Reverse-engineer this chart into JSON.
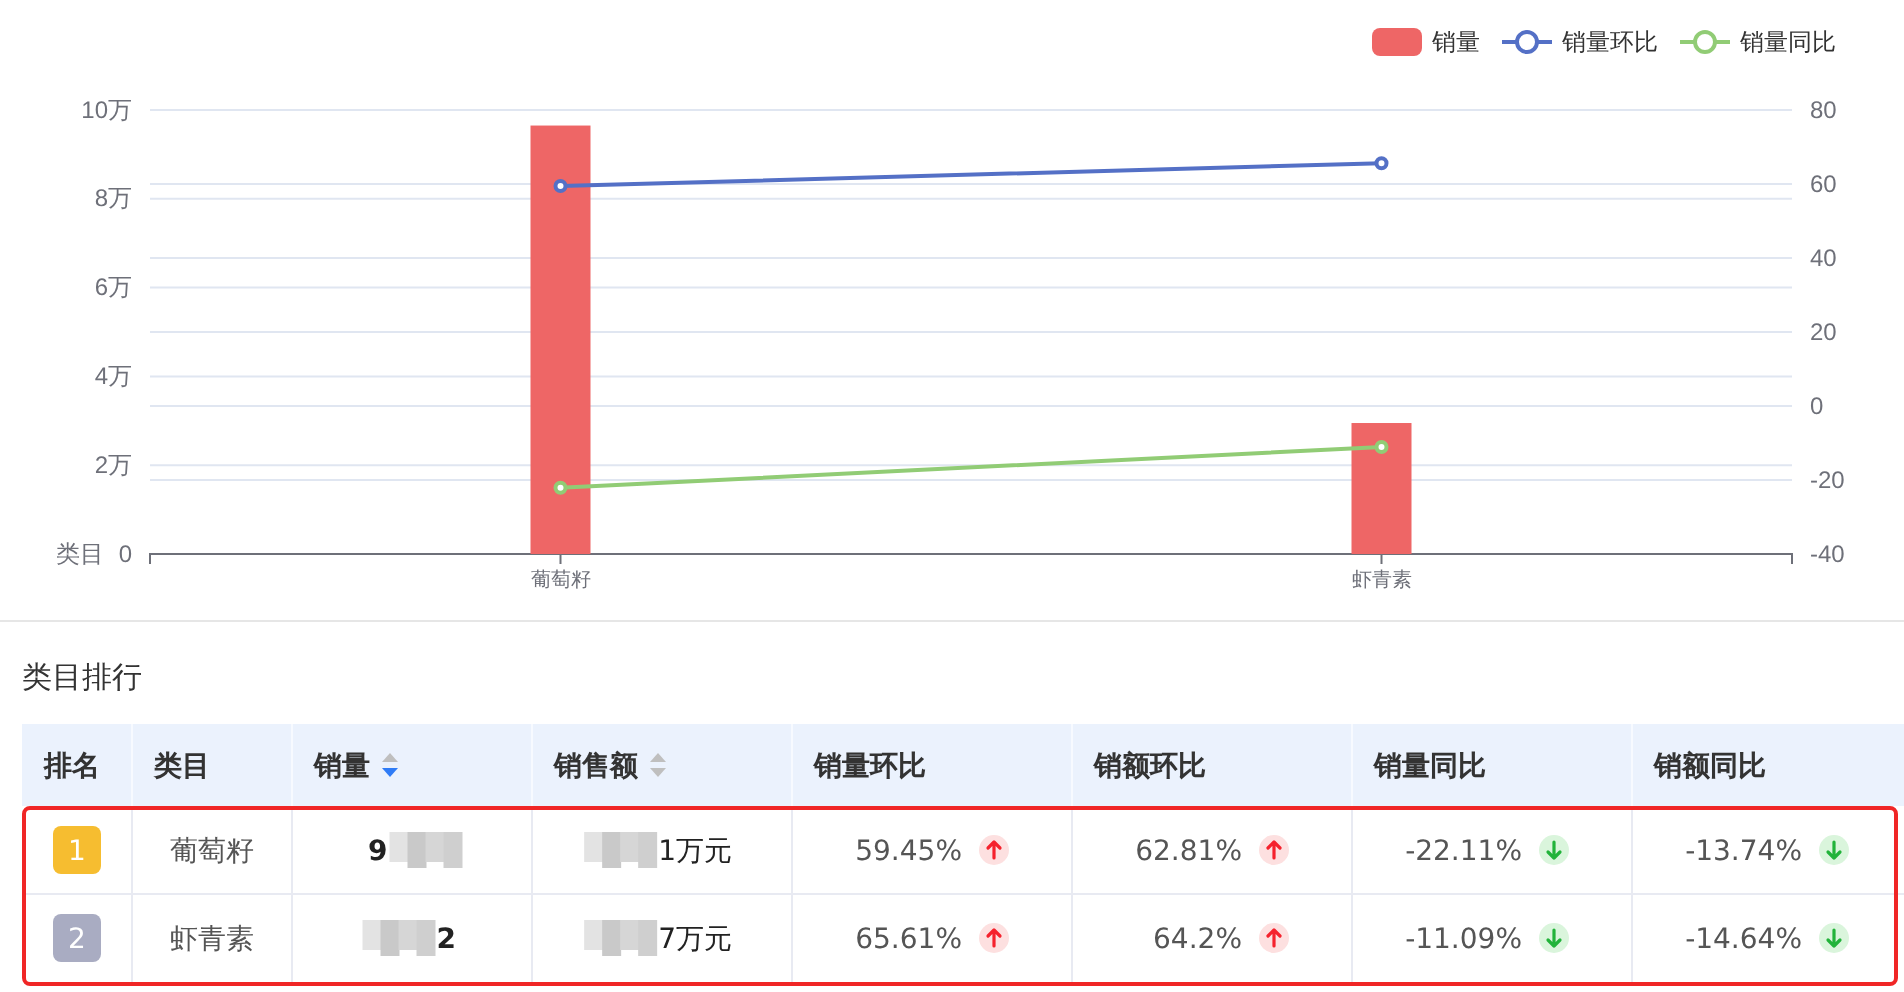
{
  "chart_data": [
    {
      "type": "bar",
      "xlabel": "类目",
      "categories": [
        "葡萄籽",
        "虾青素"
      ],
      "series": [
        {
          "name": "销量",
          "type": "bar",
          "color": "#ee6666",
          "values": [
            9.65,
            2.95
          ]
        },
        {
          "name": "销量环比",
          "type": "line",
          "axis": "y2",
          "color": "#5470c6",
          "values": [
            59.45,
            65.61
          ]
        },
        {
          "name": "销量同比",
          "type": "line",
          "axis": "y2",
          "color": "#91cc75",
          "values": [
            -22.11,
            -11.09
          ]
        }
      ],
      "ylim": [
        0,
        10
      ],
      "yticks": [
        0,
        {
          "value": 2,
          "label": "2万"
        },
        {
          "value": 4,
          "label": "4万"
        },
        {
          "value": 6,
          "label": "6万"
        },
        {
          "value": 8,
          "label": "8万"
        },
        {
          "value": 10,
          "label": "10万"
        }
      ],
      "y2lim": [
        -40,
        80
      ],
      "y2ticks": [
        -40,
        -20,
        0,
        20,
        40,
        60,
        80
      ],
      "grid": true,
      "legend": "top right",
      "marker": "circle"
    },
    {
      "type": "other",
      "title": "类目排行",
      "xlabel": "类目",
      "categories": [
        "葡萄籽",
        "虾青素"
      ],
      "series": [
        {
          "name": "排名",
          "values": [
            1,
            2
          ],
          "value_labels": [
            "1",
            "2"
          ],
          "colors": [
            "#f6bd30",
            "#a9acc2"
          ]
        },
        {
          "name": "销量",
          "values": [
            null,
            null
          ],
          "value_labels": [
            "9",
            "2"
          ]
        },
        {
          "name": "销售额",
          "values": [
            null,
            null
          ],
          "value_labels": [
            "1万元",
            "7万元"
          ]
        },
        {
          "name": "销量环比",
          "values": [
            59.45,
            65.61
          ],
          "value_labels": [
            "59.45%",
            "65.61%"
          ]
        },
        {
          "name": "销额环比",
          "values": [
            62.81,
            64.2
          ],
          "value_labels": [
            "62.81%",
            "64.2%"
          ]
        },
        {
          "name": "销量同比",
          "values": [
            -22.11,
            -11.09
          ],
          "value_labels": [
            "-22.11%",
            "-11.09%"
          ]
        },
        {
          "name": "销额同比",
          "values": [
            -13.74,
            -14.64
          ],
          "value_labels": [
            "-13.74%",
            "-14.64%"
          ]
        }
      ]
    }
  ]
}
